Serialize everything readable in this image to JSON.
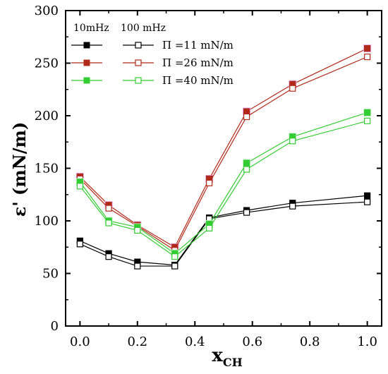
{
  "chart_data": {
    "type": "line",
    "xlabel_main": "x",
    "xlabel_sub": "CH",
    "ylabel": "ε' (mN/m)",
    "xlim": [
      -0.05,
      1.05
    ],
    "ylim": [
      0,
      300
    ],
    "xticks": [
      "0.0",
      "0.2",
      "0.4",
      "0.6",
      "0.8",
      "1.0"
    ],
    "yticks": [
      "0",
      "50",
      "100",
      "150",
      "200",
      "250",
      "300"
    ],
    "x": [
      0.0,
      0.1,
      0.2,
      0.33,
      0.45,
      0.58,
      0.74,
      1.0
    ],
    "legend_headers": [
      "10mHz",
      "100 mHz"
    ],
    "series": [
      {
        "name": "Π =11 mN/m",
        "freq": "10mHz",
        "color": "#000000",
        "filled": true,
        "values": [
          81,
          69,
          61,
          58,
          103,
          110,
          117,
          124
        ]
      },
      {
        "name": "Π =11 mN/m",
        "freq": "100 mHz",
        "color": "#000000",
        "filled": false,
        "values": [
          78,
          66,
          57,
          57,
          102,
          108,
          114,
          118
        ]
      },
      {
        "name": "Π =26 mN/m",
        "freq": "10mHz",
        "color": "#b02a1a",
        "filled": true,
        "values": [
          142,
          115,
          96,
          75,
          140,
          204,
          230,
          264
        ]
      },
      {
        "name": "Π =26 mN/m",
        "freq": "100 mHz",
        "color": "#b02a1a",
        "filled": false,
        "values": [
          140,
          112,
          95,
          72,
          136,
          199,
          226,
          256
        ]
      },
      {
        "name": "Π =40 mN/m",
        "freq": "10mHz",
        "color": "#33cc33",
        "filled": true,
        "values": [
          137,
          100,
          94,
          69,
          97,
          155,
          180,
          203
        ]
      },
      {
        "name": "Π =40 mN/m",
        "freq": "100 mHz",
        "color": "#33cc33",
        "filled": false,
        "values": [
          133,
          98,
          91,
          66,
          93,
          149,
          176,
          195
        ]
      }
    ],
    "legend_labels": [
      "Π =11 mN/m",
      "Π =26 mN/m",
      "Π =40 mN/m"
    ],
    "legend_placement": "top-left",
    "grid": false
  }
}
